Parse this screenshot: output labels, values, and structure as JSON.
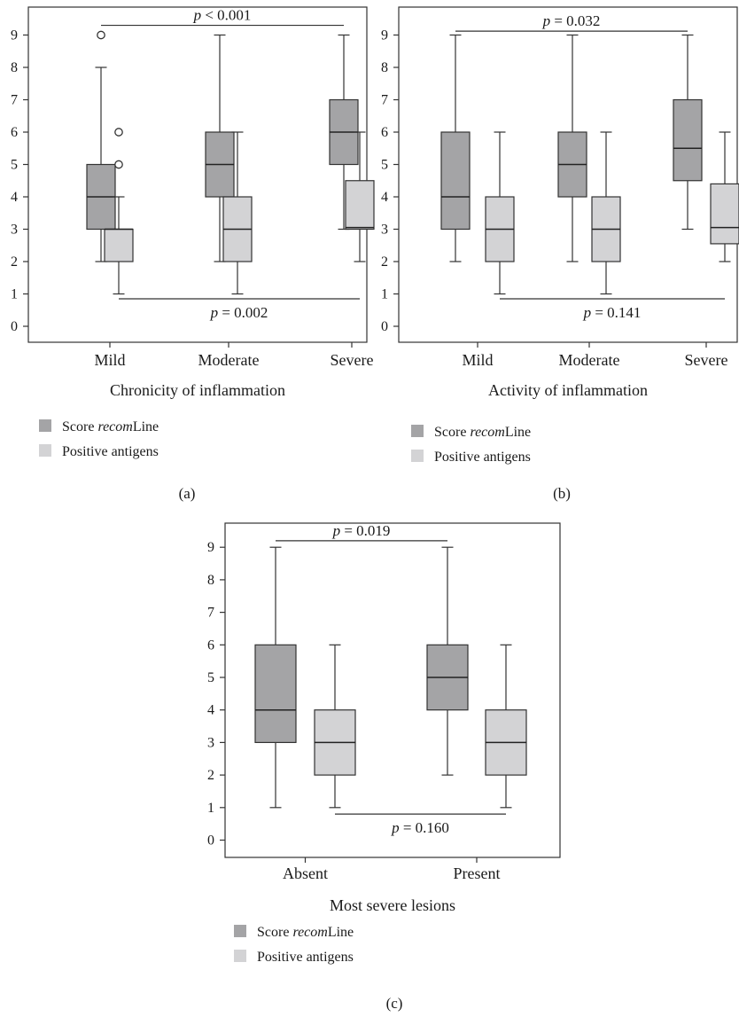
{
  "chart_data": [
    {
      "type": "box",
      "caption": "(a)",
      "xlabel": "Chronicity of inflammation",
      "categories": [
        "Mild",
        "Moderate",
        "Severe"
      ],
      "ylim": [
        0,
        9
      ],
      "yticks": [
        "0",
        "1",
        "2",
        "3",
        "4",
        "5",
        "6",
        "7",
        "8",
        "9"
      ],
      "legend": [
        "Score recomLine",
        "Positive antigens"
      ],
      "series": [
        {
          "name": "Score recomLine",
          "color": "#a4a4a6",
          "boxes": [
            {
              "min": 2,
              "q1": 3,
              "median": 4,
              "q3": 5,
              "max": 8,
              "outliers": [
                9
              ]
            },
            {
              "min": 2,
              "q1": 4,
              "median": 5,
              "q3": 6,
              "max": 9,
              "outliers": []
            },
            {
              "min": 3,
              "q1": 5,
              "median": 6,
              "q3": 7,
              "max": 9,
              "outliers": []
            }
          ]
        },
        {
          "name": "Positive antigens",
          "color": "#d3d3d5",
          "boxes": [
            {
              "min": 1,
              "q1": 2,
              "median": 3,
              "q3": 3,
              "max": 4,
              "outliers": [
                5,
                6
              ]
            },
            {
              "min": 1,
              "q1": 2,
              "median": 3,
              "q3": 4,
              "max": 6,
              "outliers": []
            },
            {
              "min": 2,
              "q1": 3,
              "median": 3.05,
              "q3": 4.5,
              "max": 6,
              "outliers": []
            }
          ]
        }
      ],
      "annotations": [
        {
          "text": "p < 0.001",
          "y": 9.3,
          "from_series": 0,
          "from_cat": 0,
          "to_series": 0,
          "to_cat": 2,
          "label_pos": "above"
        },
        {
          "text": "p = 0.002",
          "y": 0.85,
          "from_series": 1,
          "from_cat": 0,
          "to_series": 1,
          "to_cat": 2,
          "label_pos": "below"
        }
      ]
    },
    {
      "type": "box",
      "caption": "(b)",
      "xlabel": "Activity of inflammation",
      "categories": [
        "Mild",
        "Moderate",
        "Severe"
      ],
      "ylim": [
        0,
        9
      ],
      "yticks": [
        "0",
        "1",
        "2",
        "3",
        "4",
        "5",
        "6",
        "7",
        "8",
        "9"
      ],
      "legend": [
        "Score recomLine",
        "Positive antigens"
      ],
      "series": [
        {
          "name": "Score recomLine",
          "color": "#a4a4a6",
          "boxes": [
            {
              "min": 2,
              "q1": 3,
              "median": 4,
              "q3": 6,
              "max": 9,
              "outliers": []
            },
            {
              "min": 2,
              "q1": 4,
              "median": 5,
              "q3": 6,
              "max": 9,
              "outliers": []
            },
            {
              "min": 3,
              "q1": 4.5,
              "median": 5.5,
              "q3": 7,
              "max": 9,
              "outliers": []
            }
          ]
        },
        {
          "name": "Positive antigens",
          "color": "#d3d3d5",
          "boxes": [
            {
              "min": 1,
              "q1": 2,
              "median": 3,
              "q3": 4,
              "max": 6,
              "outliers": []
            },
            {
              "min": 1,
              "q1": 2,
              "median": 3,
              "q3": 4,
              "max": 6,
              "outliers": []
            },
            {
              "min": 2,
              "q1": 2.55,
              "median": 3.05,
              "q3": 4.4,
              "max": 6,
              "outliers": []
            }
          ]
        }
      ],
      "annotations": [
        {
          "text": "p = 0.032",
          "y": 9.12,
          "from_series": 0,
          "from_cat": 0,
          "to_series": 0,
          "to_cat": 2,
          "label_pos": "above"
        },
        {
          "text": "p = 0.141",
          "y": 0.85,
          "from_series": 1,
          "from_cat": 0,
          "to_series": 1,
          "to_cat": 2,
          "label_pos": "below"
        }
      ]
    },
    {
      "type": "box",
      "caption": "(c)",
      "xlabel": "Most severe lesions",
      "categories": [
        "Absent",
        "Present"
      ],
      "ylim": [
        0,
        9
      ],
      "yticks": [
        "0",
        "1",
        "2",
        "3",
        "4",
        "5",
        "6",
        "7",
        "8",
        "9"
      ],
      "legend": [
        "Score recomLine",
        "Positive antigens"
      ],
      "series": [
        {
          "name": "Score recomLine",
          "color": "#a4a4a6",
          "boxes": [
            {
              "min": 1,
              "q1": 3,
              "median": 4,
              "q3": 6,
              "max": 9,
              "outliers": []
            },
            {
              "min": 2,
              "q1": 4,
              "median": 5,
              "q3": 6,
              "max": 9,
              "outliers": []
            }
          ]
        },
        {
          "name": "Positive antigens",
          "color": "#d3d3d5",
          "boxes": [
            {
              "min": 1,
              "q1": 2,
              "median": 3,
              "q3": 4,
              "max": 6,
              "outliers": []
            },
            {
              "min": 1,
              "q1": 2,
              "median": 3,
              "q3": 4,
              "max": 6,
              "outliers": []
            }
          ]
        }
      ],
      "annotations": [
        {
          "text": "p = 0.019",
          "y": 9.2,
          "from_series": 0,
          "from_cat": 0,
          "to_series": 0,
          "to_cat": 1,
          "label_pos": "above"
        },
        {
          "text": "p = 0.160",
          "y": 0.8,
          "from_series": 1,
          "from_cat": 0,
          "to_series": 1,
          "to_cat": 1,
          "label_pos": "below"
        }
      ]
    }
  ]
}
